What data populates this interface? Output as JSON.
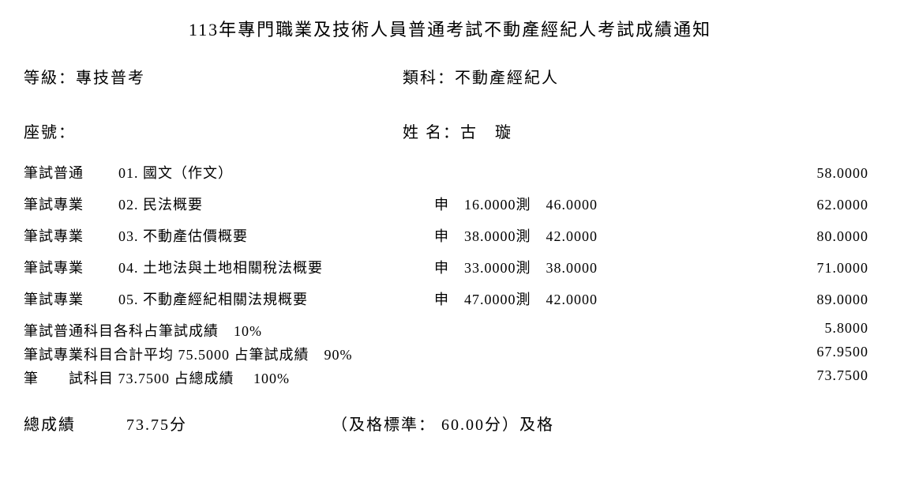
{
  "title": "113年專門職業及技術人員普通考試不動產經紀人考試成績通知",
  "header": {
    "grade_label": "等級：",
    "grade_value": "專技普考",
    "category_label": "類科：",
    "category_value": "不動產經紀人",
    "seat_label": "座號：",
    "seat_value": "",
    "name_label": "姓 名：",
    "name_value": "古　璇"
  },
  "subjects": [
    {
      "type": "筆試普通",
      "code": "01.",
      "name": "國文（作文）",
      "shen_label": "",
      "shen": "",
      "ce_label": "",
      "ce": "",
      "total": "58.0000"
    },
    {
      "type": "筆試專業",
      "code": "02.",
      "name": "民法概要",
      "shen_label": "申",
      "shen": "16.0000",
      "ce_label": "測",
      "ce": "46.0000",
      "total": "62.0000"
    },
    {
      "type": "筆試專業",
      "code": "03.",
      "name": "不動產估價概要",
      "shen_label": "申",
      "shen": "38.0000",
      "ce_label": "測",
      "ce": "42.0000",
      "total": "80.0000"
    },
    {
      "type": "筆試專業",
      "code": "04.",
      "name": "土地法與土地相關稅法概要",
      "shen_label": "申",
      "shen": "33.0000",
      "ce_label": "測",
      "ce": "38.0000",
      "total": "71.0000"
    },
    {
      "type": "筆試專業",
      "code": "05.",
      "name": "不動產經紀相關法規概要",
      "shen_label": "申",
      "shen": "47.0000",
      "ce_label": "測",
      "ce": "42.0000",
      "total": "89.0000"
    }
  ],
  "summary": [
    {
      "text": "筆試普通科目各科占筆試成績　10%",
      "value": "5.8000"
    },
    {
      "text": "筆試專業科目合計平均 75.5000 占筆試成績　90%",
      "value": "67.9500"
    },
    {
      "text": "筆　　試科目 73.7500 占總成績　 100%",
      "value": "73.7500"
    }
  ],
  "final": {
    "label": "總成績",
    "score": "73.75分",
    "standard_text": "（及格標準： 60.00分）及格"
  }
}
